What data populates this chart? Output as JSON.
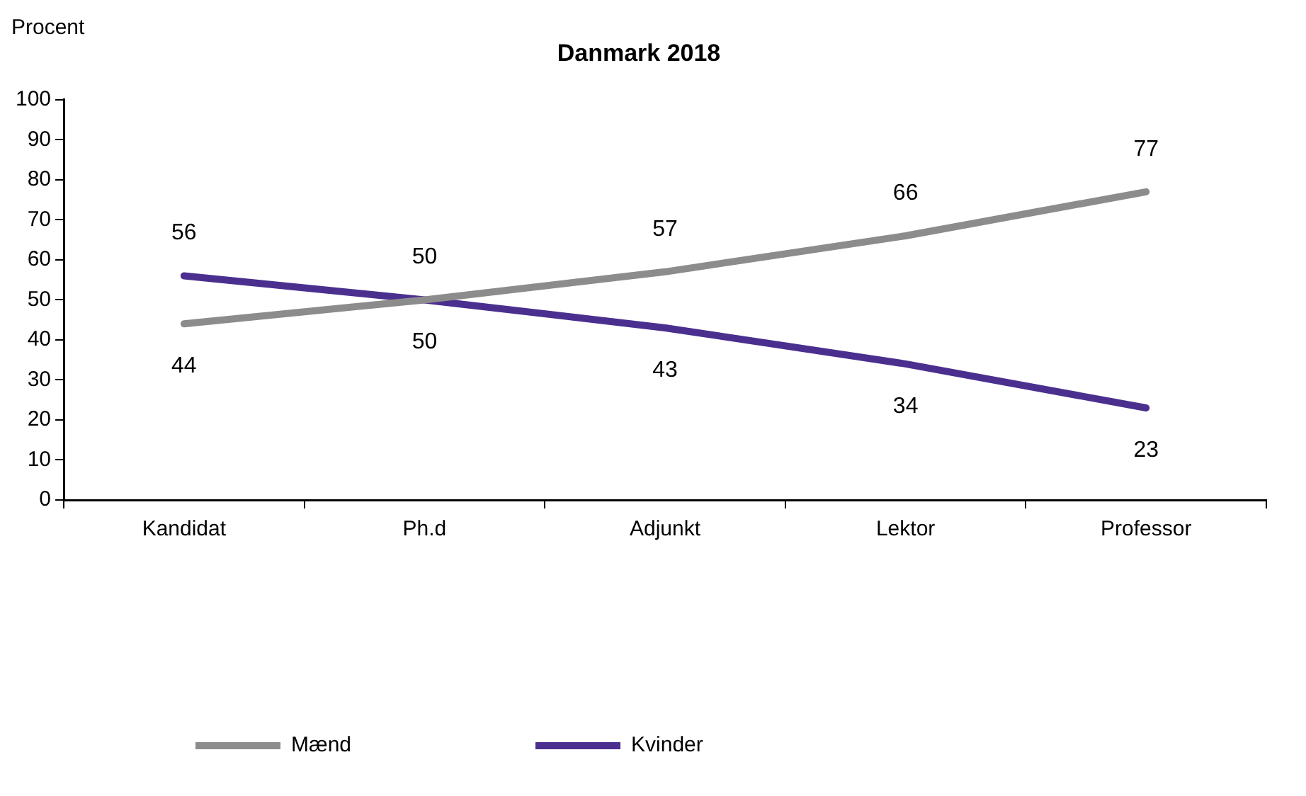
{
  "chart_data": {
    "type": "line",
    "title": "Danmark 2018",
    "ylabel": "Procent",
    "categories": [
      "Kandidat",
      "Ph.d",
      "Adjunkt",
      "Lektor",
      "Professor"
    ],
    "series": [
      {
        "name": "Mænd",
        "color": "#8c8c8c",
        "values": [
          44,
          50,
          57,
          66,
          77
        ]
      },
      {
        "name": "Kvinder",
        "color": "#4b2f8f",
        "values": [
          56,
          50,
          43,
          34,
          23
        ]
      }
    ],
    "ylim": [
      0,
      100
    ],
    "yticks": [
      0,
      10,
      20,
      30,
      40,
      50,
      60,
      70,
      80,
      90,
      100
    ],
    "grid": false,
    "legend": "bottom",
    "marker": "none",
    "line_style": "solid",
    "data_labels": true
  }
}
